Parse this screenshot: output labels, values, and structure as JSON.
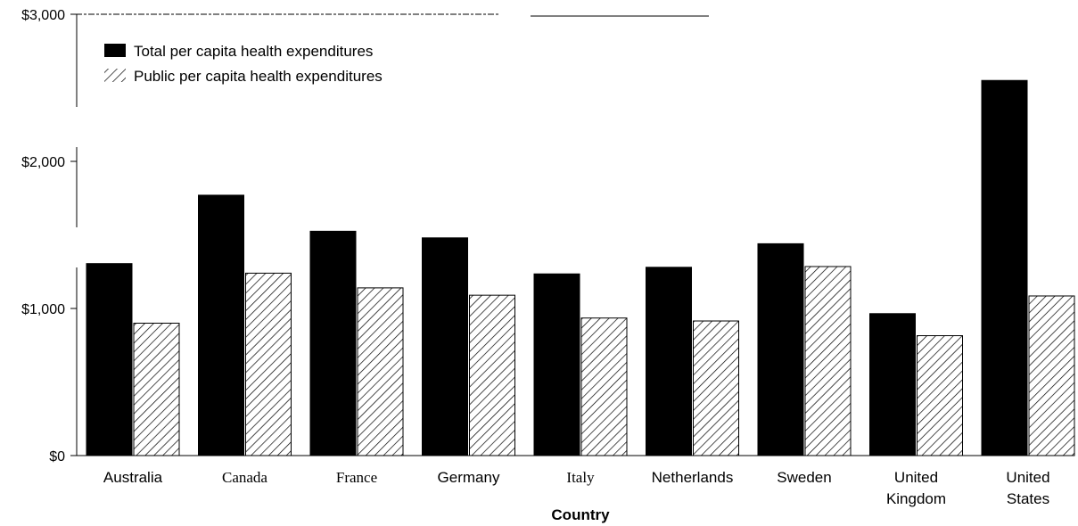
{
  "chart_data": {
    "type": "bar",
    "categories": [
      "Australia",
      "Canada",
      "France",
      "Germany",
      "Italy",
      "Netherlands",
      "Sweden",
      "United Kingdom",
      "United States"
    ],
    "category_label_lines": [
      [
        "Australia"
      ],
      [
        "Canada"
      ],
      [
        "France"
      ],
      [
        "Germany"
      ],
      [
        "Italy"
      ],
      [
        "Netherlands"
      ],
      [
        "Sweden"
      ],
      [
        "United",
        "Kingdom"
      ],
      [
        "United",
        "States"
      ]
    ],
    "serif_categories": [
      "Canada",
      "France",
      "Italy"
    ],
    "series": [
      {
        "name": "Total per capita health expenditures",
        "values": [
          1305,
          1770,
          1525,
          1480,
          1235,
          1280,
          1440,
          965,
          2550
        ],
        "fill": "solid",
        "color": "#000000"
      },
      {
        "name": "Public per capita health expenditures",
        "values": [
          900,
          1240,
          1140,
          1090,
          935,
          915,
          1285,
          815,
          1085
        ],
        "fill": "hatched",
        "color": "#000000"
      }
    ],
    "y_ticks": [
      0,
      1000,
      2000,
      3000
    ],
    "y_tick_labels": [
      "$0",
      "$1,000",
      "$2,000",
      "$3,000"
    ],
    "ylim": [
      0,
      3000
    ],
    "xlabel": "Country",
    "ylabel": "",
    "title": "",
    "legend_position": "top-left",
    "grid": false
  }
}
